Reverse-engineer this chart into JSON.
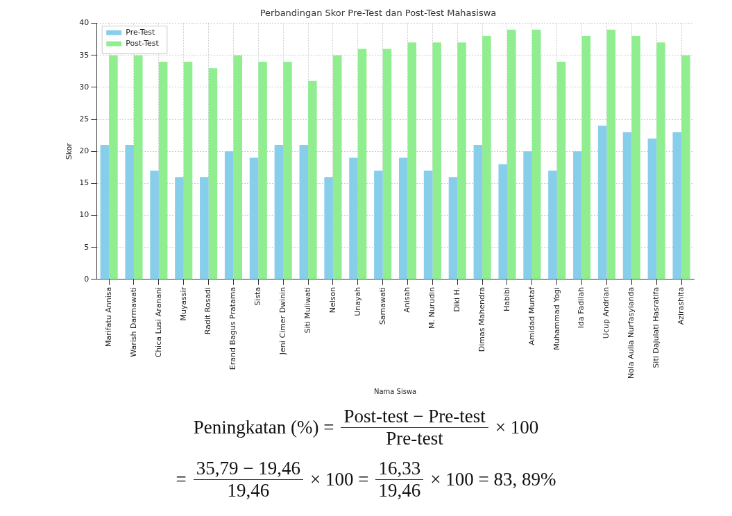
{
  "chart_data": {
    "type": "bar",
    "title": "Perbandingan Skor Pre-Test dan Post-Test Mahasiswa",
    "xlabel": "Nama Siswa",
    "ylabel": "Skor",
    "categories": [
      "Marifatu Annisa",
      "Warish Darmawati",
      "Chica Lusi Aranani",
      "Muyassir",
      "Radit Rosadi",
      "Erand Bagus Pratama",
      "Sista",
      "Jeni Cimer Dwinin",
      "Siti Muliwati",
      "Nelson",
      "Unayah",
      "Samawati",
      "Anisah",
      "M. Nurudin",
      "Diki H.",
      "Dimas Mahendra",
      "Habibi",
      "Amidad Muntaf",
      "Muhammad Yogi",
      "Ida Fadilah",
      "Ucup Andrian",
      "Nola Aulia Nurfasyianda",
      "Siti Dajulati Hasratifa",
      "Azirashita"
    ],
    "series": [
      {
        "name": "Pre-Test",
        "color": "#87ceeb",
        "values": [
          21,
          21,
          17,
          16,
          16,
          20,
          19,
          21,
          21,
          16,
          19,
          17,
          19,
          17,
          16,
          21,
          18,
          20,
          17,
          20,
          24,
          23,
          22,
          23
        ]
      },
      {
        "name": "Post-Test",
        "color": "#90ee90",
        "values": [
          35,
          35,
          34,
          34,
          33,
          35,
          34,
          34,
          31,
          35,
          36,
          36,
          37,
          37,
          37,
          38,
          39,
          39,
          34,
          38,
          39,
          38,
          37,
          35
        ]
      }
    ],
    "ylim": [
      0,
      40
    ],
    "yticks": [
      0,
      5,
      10,
      15,
      20,
      25,
      30,
      35,
      40
    ],
    "grid": true,
    "legend": "top left",
    "annotations": [
      "Peningkatan (%) =",
      "Post-test − Pre-test",
      "Pre-test",
      "× 100",
      "=",
      "35,79 − 19,46",
      "19,46",
      "× 100 =",
      "16,33",
      "19,46",
      "× 100 = 83, 89%"
    ]
  }
}
